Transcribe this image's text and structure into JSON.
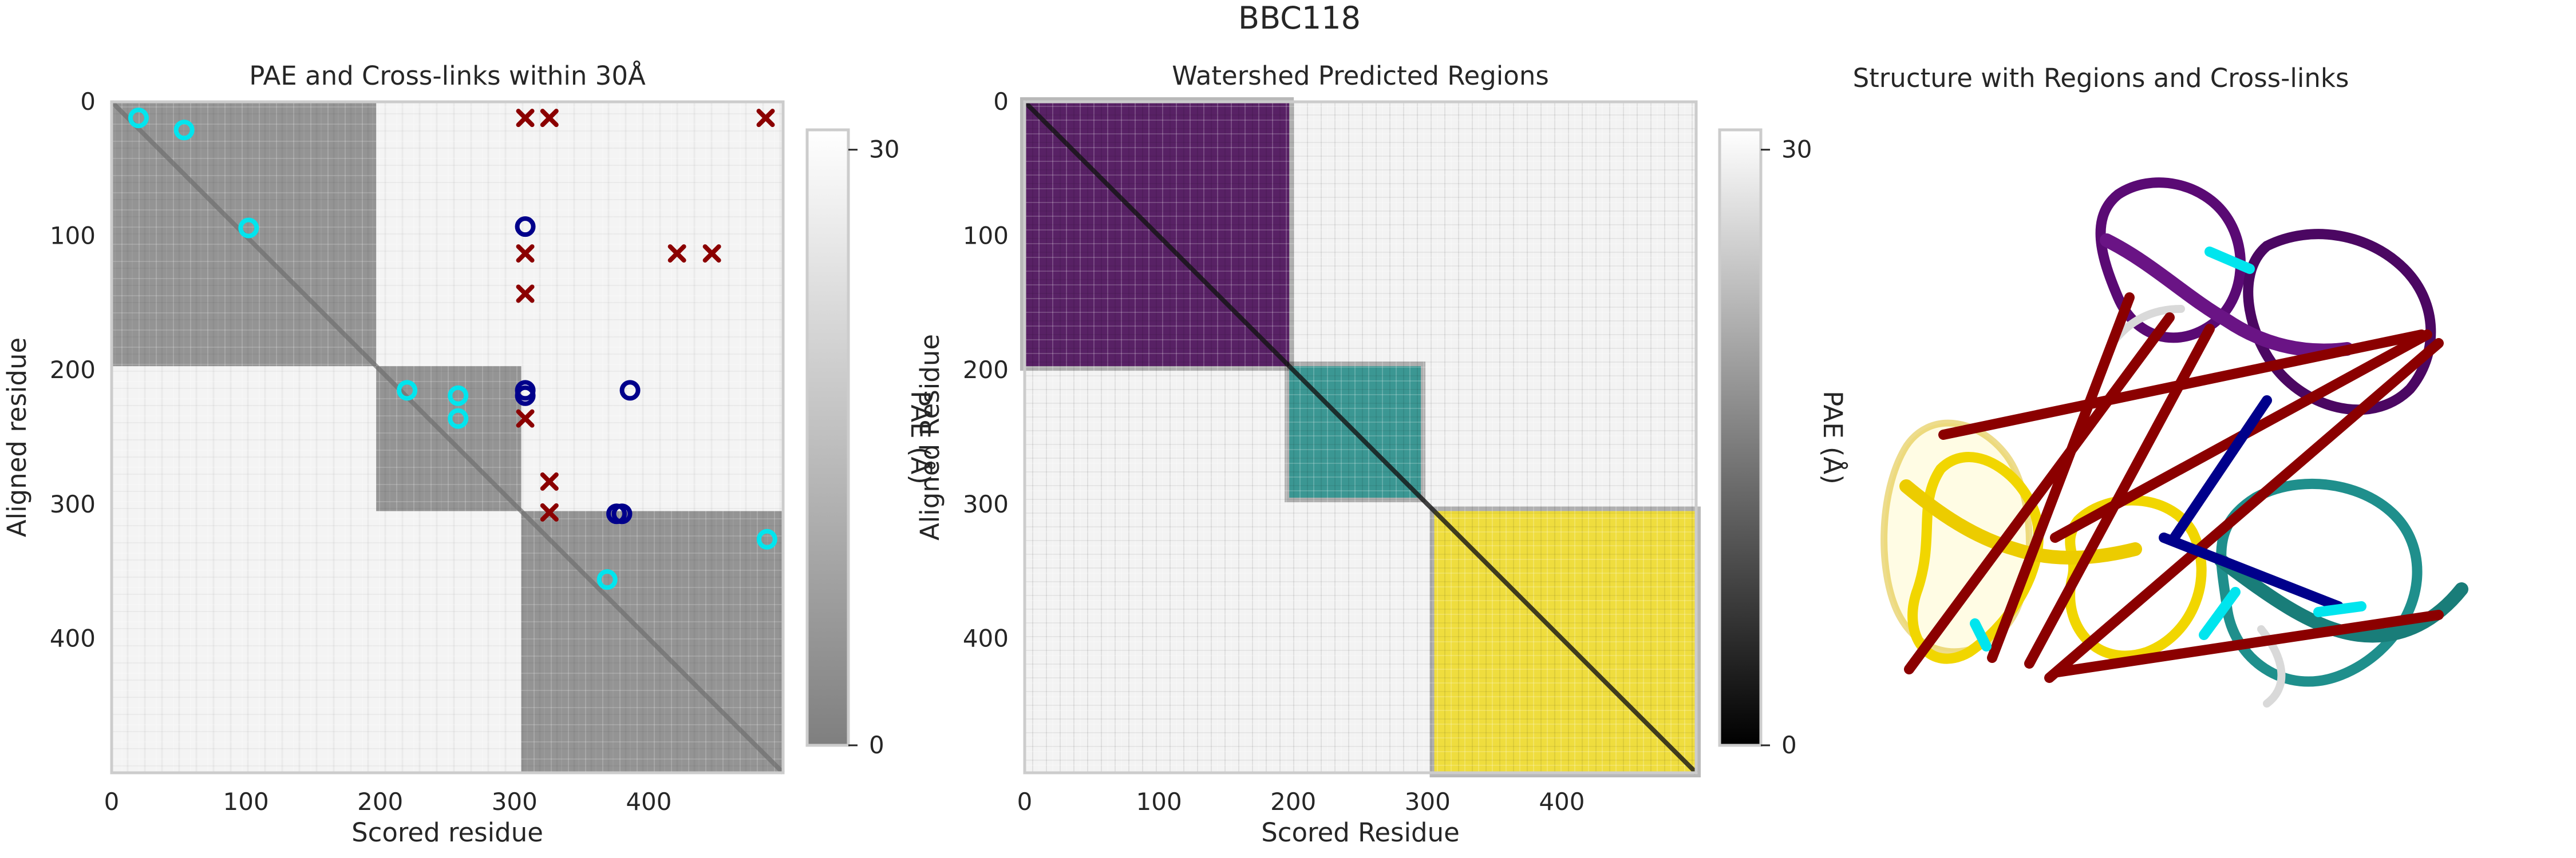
{
  "figure": {
    "suptitle": "BBC118"
  },
  "chart_data": [
    {
      "type": "heatmap",
      "title": "PAE and Cross-links within 30Å",
      "xlabel": "Scored residue",
      "ylabel": "Aligned residue",
      "xlim": [
        0,
        500
      ],
      "ylim": [
        500,
        0
      ],
      "xticks": [
        0,
        100,
        200,
        300,
        400
      ],
      "yticks": [
        0,
        100,
        200,
        300,
        400
      ],
      "colorbar": {
        "label": "PAE (Å)",
        "ticks": [
          0,
          30
        ],
        "cmap": "gray",
        "alpha": 0.5
      },
      "regions": [
        {
          "start": 0,
          "end": 197
        },
        {
          "start": 197,
          "end": 305
        },
        {
          "start": 305,
          "end": 500
        }
      ],
      "crosslinks": {
        "within_30A_same_region": [
          [
            20,
            12
          ],
          [
            54,
            21
          ],
          [
            102,
            94
          ],
          [
            220,
            215
          ],
          [
            258,
            219
          ],
          [
            258,
            236
          ],
          [
            488,
            326
          ],
          [
            369,
            356
          ]
        ],
        "within_30A_diff_region": [
          [
            308,
            93
          ],
          [
            308,
            215
          ],
          [
            308,
            219
          ],
          [
            386,
            215
          ],
          [
            376,
            307
          ],
          [
            380,
            307
          ]
        ],
        "beyond_30A": [
          [
            308,
            12
          ],
          [
            326,
            12
          ],
          [
            487,
            12
          ],
          [
            308,
            113
          ],
          [
            421,
            113
          ],
          [
            447,
            113
          ],
          [
            308,
            143
          ],
          [
            308,
            236
          ],
          [
            326,
            283
          ],
          [
            326,
            306
          ]
        ]
      }
    },
    {
      "type": "heatmap",
      "title": "Watershed Predicted Regions",
      "xlabel": "Scored Residue",
      "ylabel": "Aligned Residue",
      "xlim": [
        0,
        500
      ],
      "ylim": [
        500,
        0
      ],
      "xticks": [
        0,
        100,
        200,
        300,
        400
      ],
      "yticks": [
        0,
        100,
        200,
        300,
        400
      ],
      "colorbar": {
        "label": "PAE (Å)",
        "ticks": [
          0,
          30
        ],
        "cmap": "gray"
      },
      "regions": [
        {
          "start": 0,
          "end": 197,
          "color": "#440154"
        },
        {
          "start": 197,
          "end": 295,
          "color": "#21918c"
        },
        {
          "start": 305,
          "end": 500,
          "color": "#fde725"
        }
      ]
    }
  ],
  "structure_panel": {
    "title": "Structure with Regions and Cross-links"
  },
  "colors": {
    "axes_edge": "#cccccc",
    "text": "#262626",
    "crosslink_same_region": "#00e5ee",
    "crosslink_diff_region": "#00008b",
    "crosslink_beyond": "#8b0000",
    "region_1": "#440154",
    "region_2": "#21918c",
    "region_3": "#fde725",
    "linker": "#d9d9d9"
  }
}
